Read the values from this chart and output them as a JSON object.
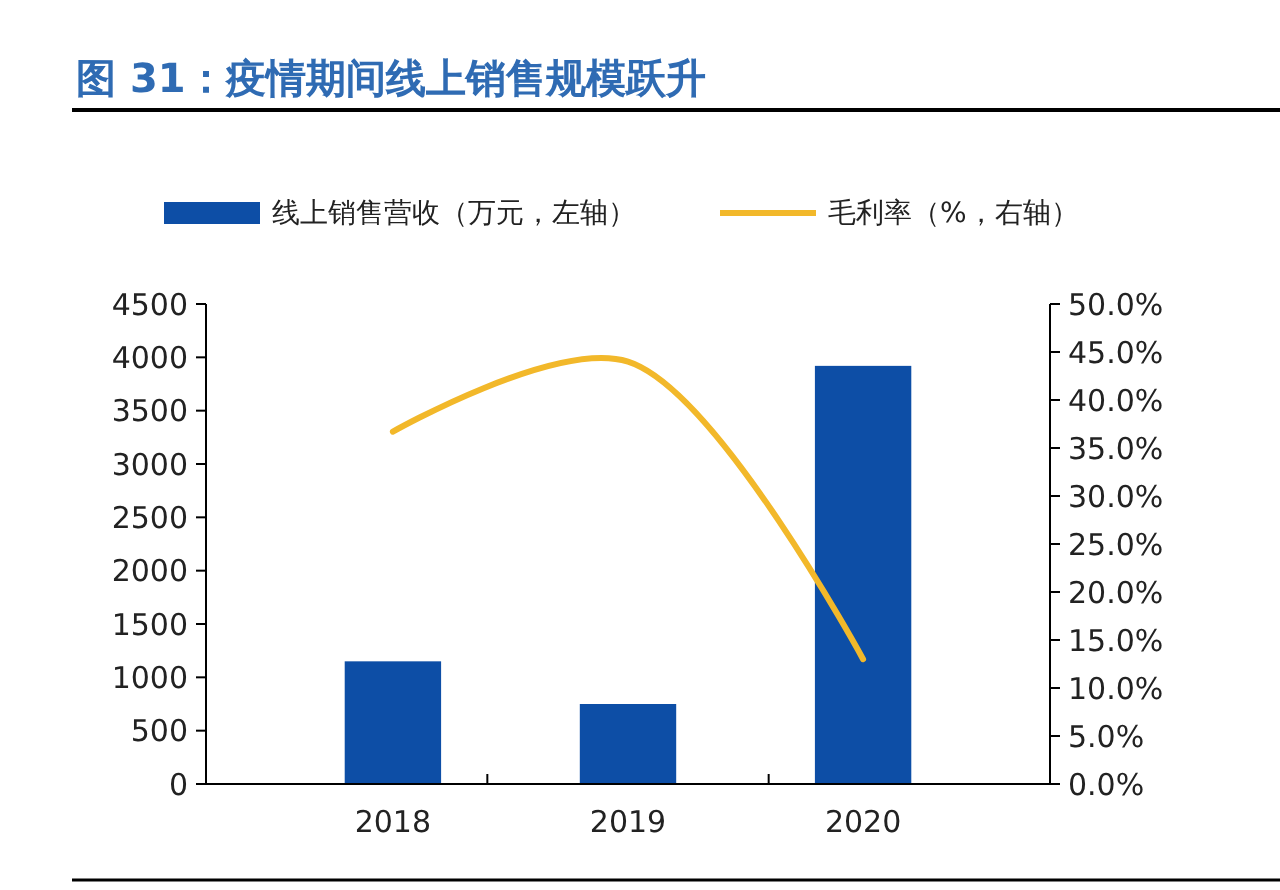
{
  "chart_data": {
    "type": "bar",
    "title": "图 31：疫情期间线上销售规模跃升",
    "categories": [
      "2018",
      "2019",
      "2020"
    ],
    "series": [
      {
        "name": "线上销售营收（万元，左轴）",
        "color": "#0d4ea6",
        "values": [
          1150,
          750,
          3920
        ]
      },
      {
        "name": "毛利率（%，右轴）",
        "type": "line",
        "axis": "y2",
        "color": "#f2b82a",
        "values": [
          36.7,
          44.0,
          13.0
        ]
      }
    ],
    "ylim": [
      0,
      4500
    ],
    "yticks": [
      0,
      500,
      1000,
      1500,
      2000,
      2500,
      3000,
      3500,
      4000,
      4500
    ],
    "y2lim": [
      0,
      50
    ],
    "y2ticks": [
      {
        "value": 0,
        "label": "0.0%"
      },
      {
        "value": 5,
        "label": "5.0%"
      },
      {
        "value": 10,
        "label": "10.0%"
      },
      {
        "value": 15,
        "label": "15.0%"
      },
      {
        "value": 20,
        "label": "20.0%"
      },
      {
        "value": 25,
        "label": "25.0%"
      },
      {
        "value": 30,
        "label": "30.0%"
      },
      {
        "value": 35,
        "label": "35.0%"
      },
      {
        "value": 40,
        "label": "40.0%"
      },
      {
        "value": 45,
        "label": "45.0%"
      },
      {
        "value": 50,
        "label": "50.0%"
      }
    ],
    "legend": "top",
    "grid": false
  }
}
